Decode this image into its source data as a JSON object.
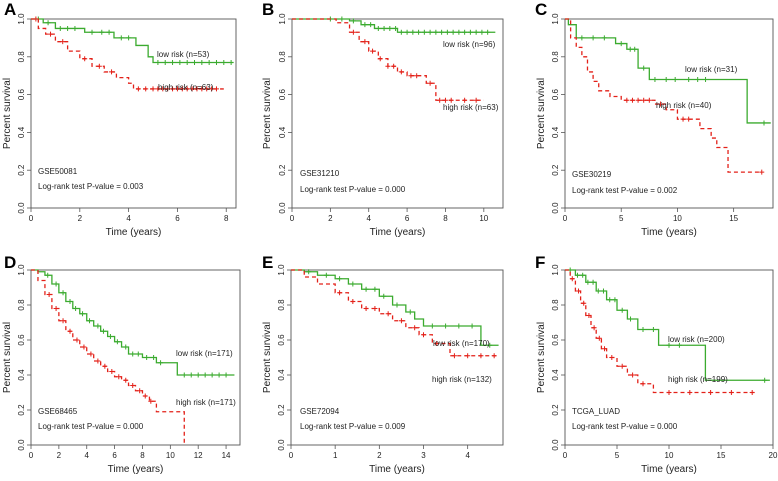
{
  "chart_data": [
    {
      "type": "line",
      "panel": "A",
      "dataset": "GSE50081",
      "pvalue_text": "Log-rank test P-value = 0.003",
      "xlabel": "Time (years)",
      "ylabel": "Percent survival",
      "xlim": [
        0,
        8.4
      ],
      "ylim": [
        0,
        1.0
      ],
      "xticks": [
        0,
        2,
        4,
        6,
        8
      ],
      "yticks": [
        0.0,
        0.2,
        0.4,
        0.6,
        0.8,
        1.0
      ],
      "series": [
        {
          "name": "low risk (n=53)",
          "color": "#3bab2f",
          "dashed": false,
          "x": [
            0,
            0.5,
            1.0,
            2.2,
            3.4,
            4.3,
            4.8,
            5.0,
            8.3
          ],
          "y": [
            1.0,
            0.98,
            0.95,
            0.93,
            0.9,
            0.86,
            0.8,
            0.77,
            0.77
          ],
          "censor_x": [
            0.3,
            0.7,
            1.2,
            1.5,
            1.8,
            2.5,
            2.9,
            3.2,
            3.7,
            4.0,
            5.2,
            5.5,
            5.8,
            6.1,
            6.4,
            6.7,
            7.0,
            7.3,
            7.6,
            7.9,
            8.2
          ]
        },
        {
          "name": "high risk (n=63)",
          "color": "#e32119",
          "dashed": true,
          "x": [
            0,
            0.3,
            0.6,
            1.0,
            1.5,
            2.0,
            2.5,
            3.0,
            3.5,
            4.0,
            4.2,
            7.9
          ],
          "y": [
            1.0,
            0.95,
            0.92,
            0.88,
            0.83,
            0.79,
            0.75,
            0.72,
            0.69,
            0.66,
            0.63,
            0.63
          ],
          "censor_x": [
            0.2,
            0.8,
            1.3,
            2.2,
            2.8,
            3.3,
            4.4,
            4.7,
            5.0,
            5.2,
            5.4,
            5.6,
            5.8,
            6.0,
            6.2,
            6.4,
            6.6,
            6.8,
            7.0,
            7.2,
            7.4,
            7.6
          ]
        }
      ],
      "legend_labels": [
        "low risk (n=53)",
        "high risk (n=63)"
      ]
    },
    {
      "type": "line",
      "panel": "B",
      "dataset": "GSE31210",
      "pvalue_text": "Log-rank test P-value = 0.000",
      "xlabel": "Time (years)",
      "ylabel": "Percent survival",
      "xlim": [
        0,
        11
      ],
      "ylim": [
        0,
        1.0
      ],
      "xticks": [
        0,
        2,
        4,
        6,
        8,
        10
      ],
      "yticks": [
        0.0,
        0.2,
        0.4,
        0.6,
        0.8,
        1.0
      ],
      "series": [
        {
          "name": "low risk (n=96)",
          "color": "#3bab2f",
          "dashed": false,
          "x": [
            0,
            3.0,
            3.6,
            4.3,
            5.5,
            10.6
          ],
          "y": [
            1.0,
            0.99,
            0.97,
            0.95,
            0.93,
            0.93
          ],
          "censor_x": [
            2.0,
            2.6,
            3.2,
            3.8,
            4.1,
            4.5,
            4.8,
            5.1,
            5.4,
            5.7,
            6.0,
            6.3,
            6.6,
            6.9,
            7.2,
            7.5,
            7.8,
            8.1,
            8.4,
            8.7,
            9.0,
            9.3,
            9.6,
            9.9,
            10.2
          ]
        },
        {
          "name": "high risk (n=63)",
          "color": "#e32119",
          "dashed": true,
          "x": [
            0,
            2.3,
            3.0,
            3.5,
            4.0,
            4.5,
            5.0,
            5.5,
            6.0,
            7.0,
            7.5,
            10.0
          ],
          "y": [
            1.0,
            0.98,
            0.93,
            0.88,
            0.83,
            0.79,
            0.75,
            0.72,
            0.7,
            0.66,
            0.57,
            0.57
          ],
          "censor_x": [
            3.2,
            3.8,
            4.2,
            4.6,
            5.0,
            5.3,
            5.7,
            6.2,
            6.5,
            7.2,
            7.7,
            8.0,
            8.3,
            9.0,
            9.6
          ]
        }
      ],
      "legend_labels": [
        "low risk (n=96)",
        "high risk (n=63)"
      ]
    },
    {
      "type": "line",
      "panel": "C",
      "dataset": "GSE30219",
      "pvalue_text": "Log-rank test P-value = 0.002",
      "xlabel": "Time (years)",
      "ylabel": "Percent survival",
      "xlim": [
        0,
        18.5
      ],
      "ylim": [
        0,
        1.0
      ],
      "xticks": [
        0,
        5,
        10,
        15
      ],
      "yticks": [
        0.0,
        0.2,
        0.4,
        0.6,
        0.8,
        1.0
      ],
      "series": [
        {
          "name": "low risk (n=31)",
          "color": "#3bab2f",
          "dashed": false,
          "x": [
            0,
            0.3,
            1.0,
            4.5,
            5.5,
            6.5,
            7.5,
            16.2,
            18.3
          ],
          "y": [
            1.0,
            0.97,
            0.9,
            0.87,
            0.84,
            0.74,
            0.68,
            0.45,
            0.45
          ],
          "censor_x": [
            1.5,
            2.5,
            3.5,
            5.0,
            5.8,
            6.2,
            7.0,
            8.0,
            9.0,
            9.8,
            11.0,
            11.8,
            12.5,
            17.7
          ]
        },
        {
          "name": "high risk (n=40)",
          "color": "#e32119",
          "dashed": true,
          "x": [
            0,
            0.5,
            1.0,
            1.5,
            2.0,
            2.5,
            3.0,
            4.0,
            5.0,
            8.0,
            9.0,
            10.0,
            12.0,
            13.0,
            13.5,
            14.5,
            17.5
          ],
          "y": [
            1.0,
            0.9,
            0.85,
            0.8,
            0.72,
            0.67,
            0.62,
            0.59,
            0.57,
            0.55,
            0.52,
            0.47,
            0.42,
            0.37,
            0.32,
            0.19,
            0.19
          ],
          "censor_x": [
            5.5,
            6.0,
            6.5,
            7.0,
            7.5,
            8.5,
            10.5,
            11.0,
            17.5
          ]
        }
      ],
      "legend_labels": [
        "low risk (n=31)",
        "high risk (n=40)"
      ]
    },
    {
      "type": "line",
      "panel": "D",
      "dataset": "GSE68465",
      "pvalue_text": "Log-rank test P-value = 0.000",
      "xlabel": "Time (years)",
      "ylabel": "Percent survival",
      "xlim": [
        0,
        15
      ],
      "ylim": [
        0,
        1.0
      ],
      "xticks": [
        0,
        2,
        4,
        6,
        8,
        10,
        12,
        14
      ],
      "yticks": [
        0.0,
        0.2,
        0.4,
        0.6,
        0.8,
        1.0
      ],
      "series": [
        {
          "name": "low risk (n=171)",
          "color": "#3bab2f",
          "dashed": false,
          "x": [
            0,
            0.5,
            1.0,
            1.5,
            2.0,
            2.5,
            3.0,
            3.5,
            4.0,
            4.5,
            5.0,
            5.5,
            6.0,
            6.5,
            7.0,
            8.0,
            9.0,
            10.5,
            14.6
          ],
          "y": [
            1.0,
            0.99,
            0.97,
            0.92,
            0.87,
            0.82,
            0.78,
            0.75,
            0.71,
            0.68,
            0.65,
            0.62,
            0.59,
            0.56,
            0.52,
            0.5,
            0.47,
            0.4,
            0.4
          ],
          "censor_x": [
            1.2,
            1.8,
            2.3,
            2.8,
            3.2,
            3.7,
            4.2,
            4.8,
            5.2,
            5.7,
            6.2,
            6.8,
            7.3,
            7.7,
            8.3,
            8.8,
            9.3,
            11.0,
            11.5,
            12.0,
            12.5,
            13.0,
            13.5,
            14.0
          ]
        },
        {
          "name": "high risk (n=171)",
          "color": "#e32119",
          "dashed": true,
          "x": [
            0,
            0.5,
            1.0,
            1.5,
            2.0,
            2.5,
            3.0,
            3.5,
            4.0,
            4.5,
            5.0,
            5.5,
            6.0,
            6.5,
            7.0,
            7.5,
            8.0,
            8.5,
            9.0,
            10.8,
            11.0
          ],
          "y": [
            1.0,
            0.94,
            0.86,
            0.78,
            0.71,
            0.65,
            0.6,
            0.56,
            0.52,
            0.48,
            0.45,
            0.42,
            0.39,
            0.37,
            0.34,
            0.31,
            0.28,
            0.25,
            0.19,
            0.19,
            0.0
          ],
          "censor_x": [
            1.3,
            1.8,
            2.3,
            2.8,
            3.3,
            3.8,
            4.3,
            4.8,
            5.3,
            5.8,
            6.3,
            6.8,
            7.3,
            7.8,
            8.2,
            8.6
          ]
        }
      ],
      "legend_labels": [
        "low risk (n=171)",
        "high risk (n=171)"
      ]
    },
    {
      "type": "line",
      "panel": "E",
      "dataset": "GSE72094",
      "pvalue_text": "Log-rank test P-value = 0.009",
      "xlabel": "Time (years)",
      "ylabel": "Percent survival",
      "xlim": [
        0,
        4.8
      ],
      "ylim": [
        0,
        1.0
      ],
      "xticks": [
        0,
        1,
        2,
        3,
        4
      ],
      "yticks": [
        0.0,
        0.2,
        0.4,
        0.6,
        0.8,
        1.0
      ],
      "series": [
        {
          "name": "low risk (n=170)",
          "color": "#3bab2f",
          "dashed": false,
          "x": [
            0,
            0.3,
            0.6,
            1.0,
            1.3,
            1.6,
            2.0,
            2.3,
            2.6,
            2.8,
            3.0,
            4.3,
            4.7
          ],
          "y": [
            1.0,
            0.99,
            0.97,
            0.95,
            0.92,
            0.89,
            0.85,
            0.8,
            0.76,
            0.72,
            0.68,
            0.57,
            0.57
          ],
          "censor_x": [
            0.4,
            0.8,
            1.1,
            1.4,
            1.7,
            1.9,
            2.1,
            2.4,
            2.7,
            3.2,
            3.5,
            3.8,
            4.1,
            4.5
          ]
        },
        {
          "name": "high risk (n=132)",
          "color": "#e32119",
          "dashed": true,
          "x": [
            0,
            0.3,
            0.6,
            1.0,
            1.3,
            1.6,
            2.0,
            2.3,
            2.6,
            2.9,
            3.2,
            3.6,
            4.7
          ],
          "y": [
            1.0,
            0.96,
            0.92,
            0.87,
            0.82,
            0.78,
            0.75,
            0.71,
            0.67,
            0.63,
            0.58,
            0.51,
            0.51
          ],
          "censor_x": [
            1.1,
            1.4,
            1.7,
            1.9,
            2.2,
            2.5,
            2.8,
            3.0,
            3.3,
            3.7,
            4.0,
            4.3,
            4.6
          ]
        }
      ],
      "legend_labels": [
        "low risk (n=170)",
        "high risk (n=132)"
      ]
    },
    {
      "type": "line",
      "panel": "F",
      "dataset": "TCGA_LUAD",
      "pvalue_text": "Log-rank test P-value = 0.000",
      "xlabel": "Time (years)",
      "ylabel": "Percent survival",
      "xlim": [
        0,
        20
      ],
      "ylim": [
        0,
        1.0
      ],
      "xticks": [
        0,
        5,
        10,
        15,
        20
      ],
      "yticks": [
        0.0,
        0.2,
        0.4,
        0.6,
        0.8,
        1.0
      ],
      "series": [
        {
          "name": "low risk (n=200)",
          "color": "#3bab2f",
          "dashed": false,
          "x": [
            0,
            1.0,
            2.0,
            3.0,
            4.0,
            5.0,
            6.0,
            7.0,
            9.0,
            13.5,
            19.7
          ],
          "y": [
            1.0,
            0.97,
            0.93,
            0.88,
            0.83,
            0.77,
            0.72,
            0.66,
            0.57,
            0.37,
            0.37
          ],
          "censor_x": [
            0.5,
            1.2,
            1.7,
            2.2,
            2.7,
            3.2,
            3.7,
            4.3,
            4.8,
            5.5,
            6.3,
            7.5,
            8.5,
            10.0,
            11.0,
            19.2
          ]
        },
        {
          "name": "high risk (n=199)",
          "color": "#e32119",
          "dashed": true,
          "x": [
            0,
            0.5,
            1.0,
            1.5,
            2.0,
            2.5,
            3.0,
            3.5,
            4.0,
            5.0,
            6.0,
            7.0,
            8.5,
            18.5
          ],
          "y": [
            1.0,
            0.95,
            0.88,
            0.81,
            0.74,
            0.67,
            0.61,
            0.55,
            0.5,
            0.45,
            0.4,
            0.35,
            0.3,
            0.3
          ],
          "censor_x": [
            0.7,
            1.3,
            1.8,
            2.3,
            2.8,
            3.3,
            3.8,
            4.5,
            5.5,
            6.5,
            7.5,
            10.0,
            12.0,
            14.0,
            16.0,
            18.0
          ]
        }
      ],
      "legend_labels": [
        "low risk (n=200)",
        "high risk (n=199)"
      ]
    }
  ]
}
